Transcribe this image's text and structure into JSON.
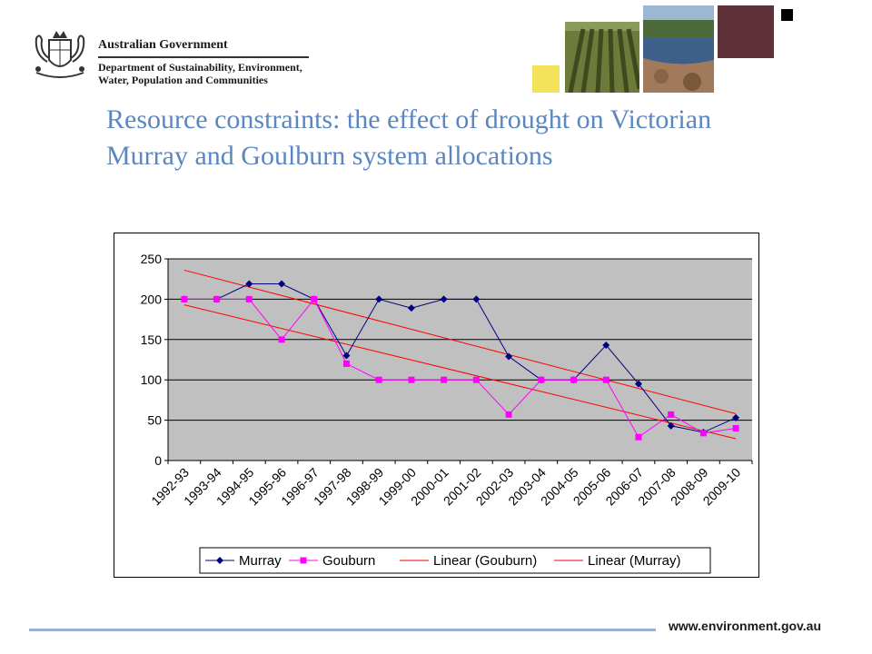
{
  "header": {
    "gov_title": "Australian Government",
    "dept_line1": "Department of Sustainability, Environment,",
    "dept_line2": "Water, Population and Communities"
  },
  "slide_title": "Resource constraints:  the effect of drought on Victorian Murray and Goulburn system allocations",
  "footer": {
    "url": "www.environment.gov.au"
  },
  "colors": {
    "title": "#5b86c0",
    "murray": "#000080",
    "goulburn": "#ff00ff",
    "trend": "#ff0000",
    "plot_bg": "#c0c0c0",
    "accent_yellow": "#f2e35a",
    "accent_maroon": "#5e3238"
  },
  "chart_data": {
    "type": "line",
    "title": "",
    "xlabel": "",
    "ylabel": "",
    "ylim": [
      0,
      250
    ],
    "yticks": [
      0,
      50,
      100,
      150,
      200,
      250
    ],
    "grid": true,
    "legend_position": "bottom",
    "categories": [
      "1992-93",
      "1993-94",
      "1994-95",
      "1995-96",
      "1996-97",
      "1997-98",
      "1998-99",
      "1999-00",
      "2000-01",
      "2001-02",
      "2002-03",
      "2003-04",
      "2004-05",
      "2005-06",
      "2006-07",
      "2007-08",
      "2008-09",
      "2009-10"
    ],
    "series": [
      {
        "name": "Murray",
        "marker": "diamond",
        "values": [
          200,
          200,
          219,
          219,
          200,
          130,
          200,
          189,
          200,
          200,
          129,
          100,
          100,
          143,
          95,
          43,
          35,
          53
        ]
      },
      {
        "name": "Gouburn",
        "marker": "square",
        "values": [
          200,
          200,
          200,
          150,
          200,
          120,
          100,
          100,
          100,
          100,
          57,
          100,
          100,
          100,
          29,
          57,
          34,
          40
        ]
      }
    ],
    "trendlines": [
      {
        "name": "Linear (Gouburn)",
        "start": 193,
        "end": 27
      },
      {
        "name": "Linear (Murray)",
        "start": 236,
        "end": 58
      }
    ]
  }
}
